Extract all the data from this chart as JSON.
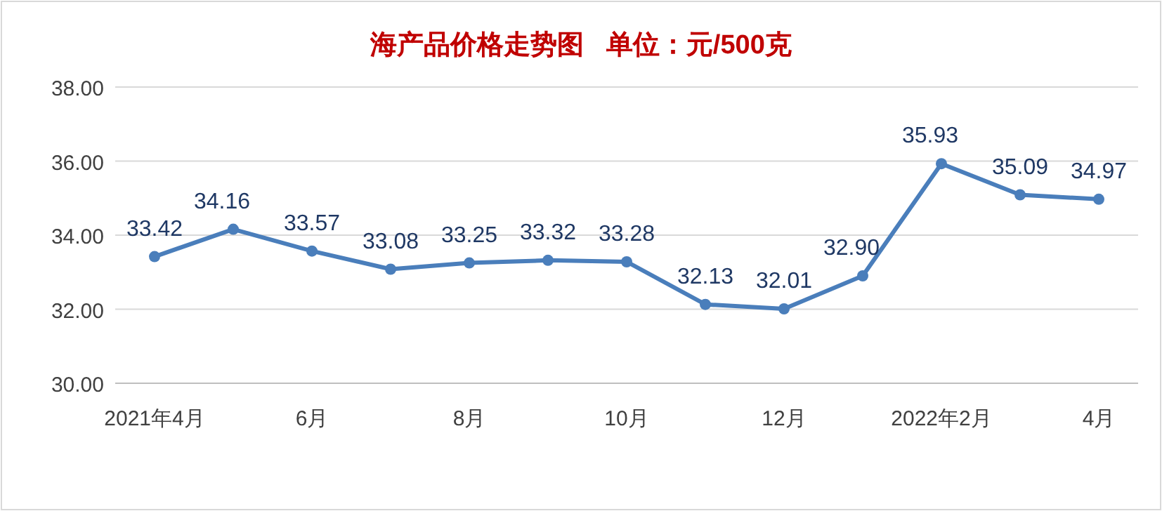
{
  "chart_data": {
    "type": "line",
    "title": "海产品价格走势图   单位：元/500克",
    "categories": [
      "2021年4月",
      null,
      "6月",
      null,
      "8月",
      null,
      "10月",
      null,
      "12月",
      null,
      "2022年2月",
      null,
      "4月"
    ],
    "series": [
      {
        "color": "#4a7ebb",
        "values": [
          33.42,
          34.16,
          33.57,
          33.08,
          33.25,
          33.32,
          33.28,
          32.13,
          32.01,
          32.9,
          35.93,
          35.09,
          34.97
        ],
        "value_labels": [
          "33.42",
          "34.16",
          "33.57",
          "33.08",
          "33.25",
          "33.32",
          "33.28",
          "32.13",
          "32.01",
          "32.90",
          "35.93",
          "35.09",
          "34.97"
        ]
      }
    ],
    "ylim": [
      30,
      38
    ],
    "yticks": [
      {
        "value": 30,
        "label": "30.00"
      },
      {
        "value": 32,
        "label": "32.00"
      },
      {
        "value": 34,
        "label": "34.00"
      },
      {
        "value": 36,
        "label": "36.00"
      },
      {
        "value": 38,
        "label": "38.00"
      }
    ],
    "grid": "y",
    "marker": "circle",
    "line_style": "solid"
  }
}
